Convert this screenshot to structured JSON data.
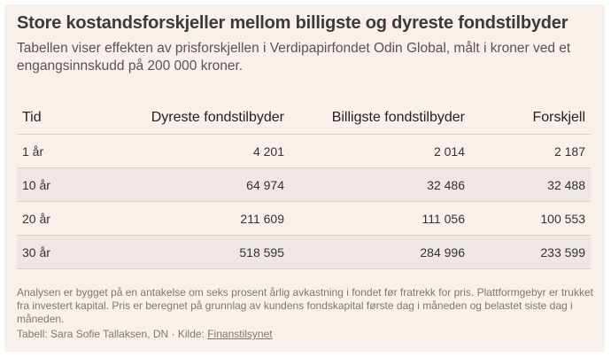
{
  "title": "Store kostandsforskjeller mellom billigste og dyreste fondstilbyder",
  "subtitle": "Tabellen viser effekten av prisforskjellen i Verdipapirfondet Odin Global, målt i kroner ved et engangsinnskudd på 200 000 kroner.",
  "chart_data": {
    "type": "table",
    "columns": [
      "Tid",
      "Dyreste fondstilbyder",
      "Billigste fondstilbyder",
      "Forskjell"
    ],
    "rows": [
      [
        "1 år",
        "4 201",
        "2 014",
        "2 187"
      ],
      [
        "10 år",
        "64 974",
        "32 486",
        "32 488"
      ],
      [
        "20 år",
        "211 609",
        "111 056",
        "100 553"
      ],
      [
        "30 år",
        "518 595",
        "284 996",
        "233 599"
      ]
    ]
  },
  "notes": "Analysen er bygget på en antakelse om seks prosent årlig avkastning i fondet før fratrekk for pris. Plattformgebyr er trukket fra investert kapital. Pris er beregnet på grunnlag av kundens fondskapital første dag i måneden og belastet siste dag i måneden.",
  "source": {
    "prefix": "Tabell: Sara Sofie Tallaksen, DN · Kilde: ",
    "link_label": "Finanstilsynet"
  },
  "colors": {
    "background": "#f9f0ec",
    "row_alt": "#efe7e3",
    "text": "#333333",
    "muted": "#7d7774"
  }
}
